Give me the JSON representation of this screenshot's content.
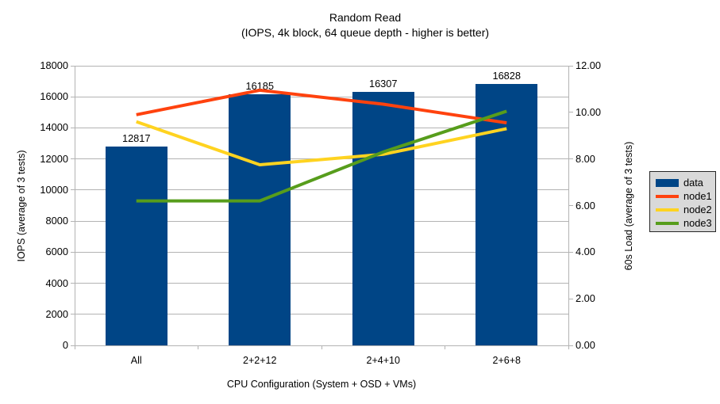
{
  "chart": {
    "title": "Random Read",
    "subtitle": "(IOPS, 4k block, 64 queue depth - higher is better)"
  },
  "chart_data": {
    "type": "bar+line",
    "categories": [
      "All",
      "2+2+12",
      "2+4+10",
      "2+6+8"
    ],
    "series": [
      {
        "name": "data",
        "type": "bar",
        "axis": "left",
        "color": "#004586",
        "values": [
          12817,
          16185,
          16307,
          16828
        ],
        "data_labels": [
          "12817",
          "16185",
          "16307",
          "16828"
        ]
      },
      {
        "name": "node1",
        "type": "line",
        "axis": "right",
        "color": "#FF420E",
        "values": [
          9.9,
          10.95,
          10.35,
          9.55
        ]
      },
      {
        "name": "node2",
        "type": "line",
        "axis": "right",
        "color": "#FFD320",
        "values": [
          9.6,
          7.75,
          8.2,
          9.3
        ]
      },
      {
        "name": "node3",
        "type": "line",
        "axis": "right",
        "color": "#579D1C",
        "values": [
          6.2,
          6.2,
          8.3,
          10.05
        ]
      }
    ],
    "left_axis": {
      "label": "IOPS (average of 3 tests)",
      "min": 0,
      "max": 18000,
      "step": 2000,
      "tick_labels": [
        "0",
        "2000",
        "4000",
        "6000",
        "8000",
        "10000",
        "12000",
        "14000",
        "16000",
        "18000"
      ]
    },
    "right_axis": {
      "label": "60s Load (average of 3 tests)",
      "min": 0,
      "max": 12,
      "step": 2,
      "tick_labels": [
        "0.00",
        "2.00",
        "4.00",
        "6.00",
        "8.00",
        "10.00",
        "12.00"
      ]
    },
    "x_axis": {
      "label": "CPU Configuration (System + OSD + VMs)"
    },
    "legend_position": "right",
    "grid": "horizontal"
  },
  "legend": {
    "items": [
      {
        "label": "data",
        "color": "#004586",
        "shape": "rect"
      },
      {
        "label": "node1",
        "color": "#FF420E",
        "shape": "line"
      },
      {
        "label": "node2",
        "color": "#FFD320",
        "shape": "line"
      },
      {
        "label": "node3",
        "color": "#579D1C",
        "shape": "line"
      }
    ]
  },
  "colors": {
    "background": "#ffffff",
    "grid": "#b3b3b3",
    "axis": "#b3b3b3",
    "text": "#000000",
    "bar": "#004586",
    "legend_bg": "#d9d9d9",
    "legend_border": "#262626"
  }
}
